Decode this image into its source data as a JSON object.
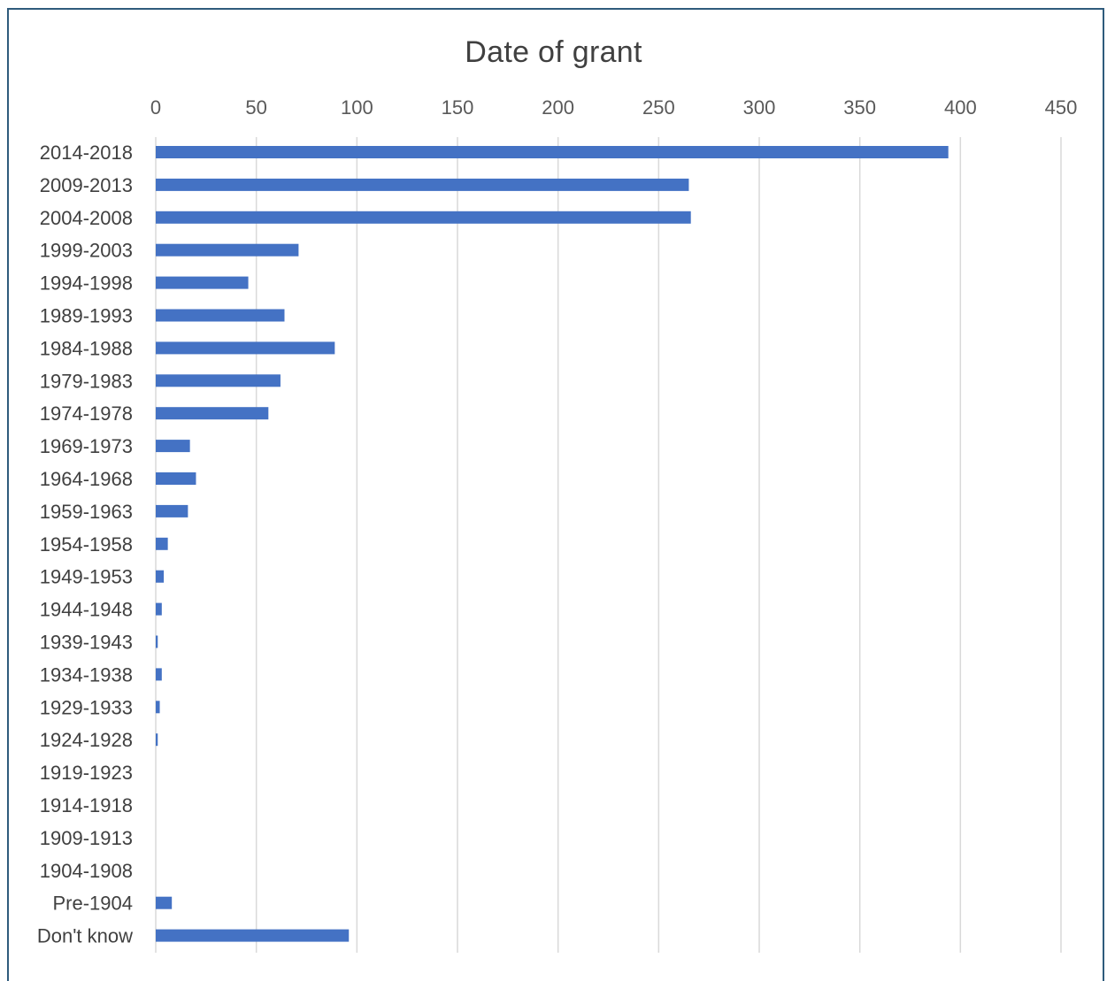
{
  "chart_data": {
    "type": "bar",
    "orientation": "horizontal",
    "title": "Date of grant",
    "xlabel": "",
    "ylabel": "",
    "xlim": [
      0,
      450
    ],
    "x_ticks": [
      "0",
      "50",
      "100",
      "150",
      "200",
      "250",
      "300",
      "350",
      "400",
      "450"
    ],
    "x_axis_position": "top",
    "grid": true,
    "legend": "none",
    "bar_color": "#4472c4",
    "gridline_color": "#d9d9d9",
    "categories": [
      "2014-2018",
      "2009-2013",
      "2004-2008",
      "1999-2003",
      "1994-1998",
      "1989-1993",
      "1984-1988",
      "1979-1983",
      "1974-1978",
      "1969-1973",
      "1964-1968",
      "1959-1963",
      "1954-1958",
      "1949-1953",
      "1944-1948",
      "1939-1943",
      "1934-1938",
      "1929-1933",
      "1924-1928",
      "1919-1923",
      "1914-1918",
      "1909-1913",
      "1904-1908",
      "Pre-1904",
      "Don't know"
    ],
    "values": [
      394,
      265,
      266,
      71,
      46,
      64,
      89,
      62,
      56,
      17,
      20,
      16,
      6,
      4,
      3,
      1,
      3,
      2,
      1,
      0,
      0,
      0,
      0,
      8,
      96
    ]
  }
}
